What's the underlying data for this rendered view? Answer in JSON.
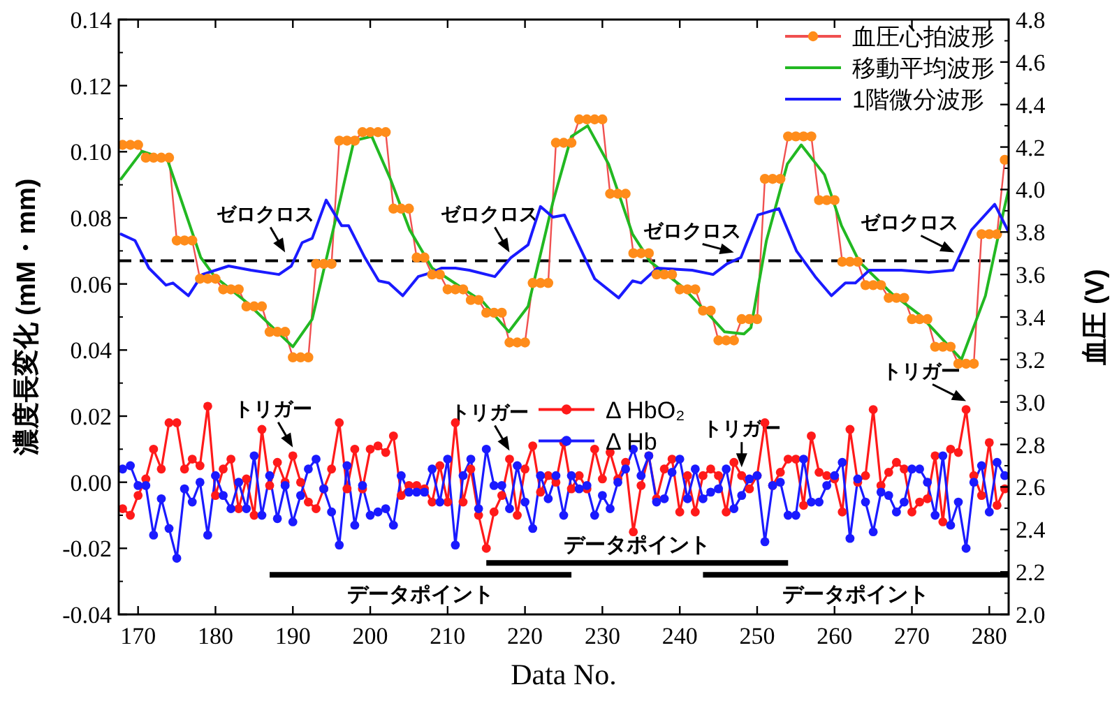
{
  "chart_data": {
    "type": "line",
    "xlabel": "Data No.",
    "ylabel": "濃度長変化 (mM・mm)",
    "y2label": "血圧 (V)",
    "xlim": [
      167.5,
      282.5
    ],
    "xticks": [
      170,
      180,
      190,
      200,
      210,
      220,
      230,
      240,
      250,
      260,
      270,
      280
    ],
    "ylim": [
      -0.04,
      0.14
    ],
    "yticks": [
      {
        "value": -0.04,
        "label": "-0.04"
      },
      {
        "value": -0.02,
        "label": "-0.02"
      },
      {
        "value": 0,
        "label": "0.00"
      },
      {
        "value": 0.02,
        "label": "0.02"
      },
      {
        "value": 0.04,
        "label": "0.04"
      },
      {
        "value": 0.06,
        "label": "0.06"
      },
      {
        "value": 0.08,
        "label": "0.08"
      },
      {
        "value": 0.1,
        "label": "0.10"
      },
      {
        "value": 0.12,
        "label": "0.12"
      },
      {
        "value": 0.14,
        "label": "0.14"
      }
    ],
    "y2lim": [
      2.0,
      4.8
    ],
    "y2ticks": [
      {
        "value": 2.0,
        "label": "2.0"
      },
      {
        "value": 2.2,
        "label": "2.2"
      },
      {
        "value": 2.4,
        "label": "2.4"
      },
      {
        "value": 2.6,
        "label": "2.6"
      },
      {
        "value": 2.8,
        "label": "2.8"
      },
      {
        "value": 3.0,
        "label": "3.0"
      },
      {
        "value": 3.2,
        "label": "3.2"
      },
      {
        "value": 3.4,
        "label": "3.4"
      },
      {
        "value": 3.6,
        "label": "3.6"
      },
      {
        "value": 3.8,
        "label": "3.8"
      },
      {
        "value": 4.0,
        "label": "4.0"
      },
      {
        "value": 4.2,
        "label": "4.2"
      },
      {
        "value": 4.4,
        "label": "4.4"
      },
      {
        "value": 4.6,
        "label": "4.6"
      },
      {
        "value": 4.8,
        "label": "4.8"
      }
    ],
    "grid": false,
    "legend": "top right",
    "x": [
      168,
      169,
      170,
      171,
      172,
      173,
      174,
      175,
      176,
      177,
      178,
      179,
      180,
      181,
      182,
      183,
      184,
      185,
      186,
      187,
      188,
      189,
      190,
      191,
      192,
      193,
      194,
      195,
      196,
      197,
      198,
      199,
      200,
      201,
      202,
      203,
      204,
      205,
      206,
      207,
      208,
      209,
      210,
      211,
      212,
      213,
      214,
      215,
      216,
      217,
      218,
      219,
      220,
      221,
      222,
      223,
      224,
      225,
      226,
      227,
      228,
      229,
      230,
      231,
      232,
      233,
      234,
      235,
      236,
      237,
      238,
      239,
      240,
      241,
      242,
      243,
      244,
      245,
      246,
      247,
      248,
      249,
      250,
      251,
      252,
      253,
      254,
      255,
      256,
      257,
      258,
      259,
      260,
      261,
      262,
      263,
      264,
      265,
      266,
      267,
      268,
      269,
      270,
      271,
      272,
      273,
      274,
      275,
      276,
      277,
      278,
      279,
      280,
      281,
      282
    ],
    "series": [
      {
        "name": "データポイント",
        "axis": "y",
        "color": "#000000",
        "marker": "none",
        "x": [
          187,
          226
        ],
        "values": [
          -0.028,
          -0.028
        ]
      },
      {
        "name": "データポイント",
        "axis": "y",
        "color": "#000000",
        "marker": "none",
        "x": [
          215,
          254
        ],
        "values": [
          -0.0244,
          -0.0244
        ]
      },
      {
        "name": "データポイント",
        "axis": "y",
        "color": "#000000",
        "marker": "none",
        "x": [
          243,
          282.5
        ],
        "values": [
          -0.028,
          -0.028
        ]
      },
      {
        "name": "血圧心拍波形",
        "axis": "y2",
        "color": "#ff8c1a",
        "marker": "circle",
        "values": [
          4.21,
          4.21,
          4.21,
          4.15,
          4.15,
          4.15,
          4.15,
          3.76,
          3.76,
          3.76,
          3.58,
          3.58,
          3.58,
          3.53,
          3.53,
          3.53,
          3.45,
          3.45,
          3.45,
          3.33,
          3.33,
          3.33,
          3.21,
          3.21,
          3.21,
          3.65,
          3.65,
          3.65,
          4.23,
          4.23,
          4.23,
          4.27,
          4.27,
          4.27,
          4.27,
          3.91,
          3.91,
          3.91,
          3.68,
          3.68,
          3.6,
          3.6,
          3.53,
          3.53,
          3.53,
          3.48,
          3.48,
          3.42,
          3.42,
          3.42,
          3.28,
          3.28,
          3.28,
          3.56,
          3.56,
          3.56,
          4.22,
          4.22,
          4.22,
          4.33,
          4.33,
          4.33,
          4.33,
          3.98,
          3.98,
          3.98,
          3.7,
          3.7,
          3.7,
          3.6,
          3.6,
          3.6,
          3.53,
          3.53,
          3.53,
          3.43,
          3.43,
          3.29,
          3.29,
          3.29,
          3.39,
          3.39,
          3.39,
          4.05,
          4.05,
          4.05,
          4.25,
          4.25,
          4.25,
          4.25,
          3.95,
          3.95,
          3.95,
          3.66,
          3.66,
          3.66,
          3.55,
          3.55,
          3.55,
          3.49,
          3.49,
          3.49,
          3.39,
          3.39,
          3.39,
          3.26,
          3.26,
          3.26,
          3.18,
          3.18,
          3.18,
          3.79,
          3.79,
          3.79,
          4.14
        ]
      },
      {
        "name": "移動平均波形",
        "axis": "y2",
        "color": "#22b822",
        "marker": "none",
        "x": [
          167.8,
          170.5,
          173.8,
          178.1,
          179.9,
          184,
          190,
          192.5,
          195.4,
          197.9,
          200.2,
          202.6,
          205.1,
          208,
          214.6,
          217.9,
          220.4,
          223.6,
          226,
          228.1,
          230.8,
          233.9,
          236.2,
          240.4,
          244.3,
          245.8,
          248.3,
          249.2,
          251.2,
          253.9,
          255.7,
          258.7,
          260.9,
          263.2,
          267.4,
          271,
          276.4,
          279.5,
          281.8,
          282.5
        ],
        "values": [
          4.05,
          4.18,
          4.14,
          3.68,
          3.59,
          3.47,
          3.26,
          3.39,
          3.84,
          4.23,
          4.25,
          4.05,
          3.81,
          3.63,
          3.47,
          3.33,
          3.45,
          3.94,
          4.25,
          4.3,
          4.12,
          3.79,
          3.66,
          3.54,
          3.39,
          3.33,
          3.32,
          3.35,
          3.76,
          4.12,
          4.21,
          4.07,
          3.83,
          3.66,
          3.51,
          3.41,
          3.2,
          3.5,
          3.89,
          4.0
        ]
      },
      {
        "name": "1階微分波形",
        "axis": "y2",
        "color": "#1a1aff",
        "marker": "none",
        "x": [
          167.8,
          169.6,
          171.4,
          173.6,
          174.5,
          176.5,
          178.3,
          181.7,
          184.6,
          188.2,
          189.8,
          191.2,
          192.5,
          194.3,
          196.3,
          197.2,
          199.3,
          201.1,
          202.4,
          204.2,
          206.2,
          208,
          209.2,
          211,
          212.8,
          216.1,
          218.2,
          220.4,
          222,
          223.6,
          225.1,
          229,
          232.1,
          233.9,
          235,
          237.1,
          241.6,
          244.3,
          246.1,
          247.9,
          250.1,
          252.8,
          255.1,
          257.5,
          259.6,
          261.4,
          262.7,
          264.5,
          268.6,
          272.2,
          275.3,
          277.7,
          280.7,
          282.5
        ],
        "values": [
          3.79,
          3.76,
          3.63,
          3.55,
          3.56,
          3.5,
          3.6,
          3.64,
          3.62,
          3.6,
          3.64,
          3.75,
          3.77,
          3.95,
          3.83,
          3.83,
          3.68,
          3.57,
          3.56,
          3.5,
          3.59,
          3.61,
          3.63,
          3.63,
          3.62,
          3.59,
          3.68,
          3.74,
          3.92,
          3.87,
          3.88,
          3.58,
          3.49,
          3.57,
          3.56,
          3.63,
          3.62,
          3.6,
          3.65,
          3.68,
          3.88,
          3.91,
          3.71,
          3.59,
          3.5,
          3.56,
          3.56,
          3.62,
          3.62,
          3.61,
          3.62,
          3.81,
          3.93,
          3.8
        ]
      },
      {
        "name": "Δ HbO₂",
        "axis": "y",
        "color": "#ff1a1a",
        "marker": "circle",
        "values": [
          -0.008,
          -0.01,
          -0.004,
          0.001,
          0.01,
          0.004,
          0.018,
          0.018,
          0.004,
          0.007,
          0.005,
          0.023,
          -0.004,
          0.004,
          0.007,
          -0.008,
          0.001,
          -0.01,
          0.016,
          -0.001,
          0.006,
          0.0,
          0.008,
          0.0,
          -0.006,
          -0.008,
          -0.002,
          0.004,
          0.018,
          -0.002,
          0.01,
          -0.002,
          0.01,
          0.011,
          0.009,
          0.014,
          -0.004,
          -0.001,
          -0.001,
          -0.002,
          -0.006,
          0.005,
          -0.006,
          0.018,
          -0.006,
          0.004,
          -0.01,
          -0.02,
          -0.009,
          -0.004,
          0.007,
          -0.01,
          0.004,
          0.011,
          -0.003,
          0.002,
          0.0,
          0.012,
          -0.002,
          0.002,
          -0.002,
          0.01,
          0.001,
          0.009,
          0.001,
          0.006,
          -0.015,
          -0.001,
          0.008,
          -0.005,
          0.004,
          0.007,
          -0.009,
          0.002,
          -0.009,
          0.002,
          0.004,
          0.002,
          -0.009,
          0.006,
          0.002,
          -0.002,
          0.002,
          0.018,
          -0.001,
          0.003,
          0.007,
          0.007,
          -0.007,
          0.014,
          0.003,
          0.002,
          0.001,
          -0.009,
          0.016,
          0.0,
          0.002,
          0.022,
          -0.001,
          0.003,
          0.006,
          0.004,
          -0.009,
          -0.006,
          -0.005,
          0.008,
          -0.012,
          0.01,
          0.009,
          0.022,
          0.002,
          -0.004,
          0.012,
          -0.007,
          -0.002
        ]
      },
      {
        "name": "Δ Hb",
        "axis": "y",
        "color": "#1a1aff",
        "marker": "circle",
        "values": [
          0.004,
          0.005,
          -0.001,
          -0.001,
          -0.016,
          -0.005,
          -0.014,
          -0.023,
          -0.002,
          -0.006,
          0.0,
          -0.016,
          0.002,
          -0.004,
          -0.008,
          0.0,
          -0.008,
          0.008,
          -0.01,
          0.002,
          -0.011,
          -0.001,
          -0.012,
          -0.004,
          0.004,
          0.007,
          -0.002,
          -0.009,
          -0.019,
          0.005,
          -0.013,
          -0.001,
          -0.01,
          -0.009,
          -0.008,
          -0.013,
          0.002,
          -0.003,
          -0.003,
          -0.003,
          0.004,
          -0.006,
          0.007,
          -0.019,
          0.002,
          0.007,
          -0.008,
          0.01,
          -0.001,
          -0.001,
          -0.008,
          0.005,
          -0.006,
          -0.014,
          0.002,
          -0.005,
          0.002,
          -0.01,
          0.002,
          -0.002,
          -0.001,
          -0.01,
          -0.004,
          -0.008,
          0.0,
          0.004,
          0.01,
          0.002,
          0.008,
          -0.006,
          -0.005,
          0.003,
          0.007,
          -0.005,
          0.004,
          -0.005,
          -0.003,
          -0.002,
          0.004,
          -0.008,
          -0.004,
          0.001,
          0.002,
          -0.018,
          -0.001,
          0.0,
          -0.01,
          -0.01,
          0.007,
          -0.006,
          -0.006,
          -0.001,
          0.002,
          0.006,
          -0.017,
          0.001,
          -0.006,
          -0.015,
          -0.003,
          -0.004,
          -0.009,
          -0.006,
          0.004,
          0.004,
          0.0,
          -0.01,
          0.008,
          -0.013,
          -0.006,
          -0.02,
          0.0,
          0.005,
          -0.009,
          0.006,
          0.002
        ]
      }
    ],
    "ref_lines": [
      {
        "axis": "y",
        "value": 0.067,
        "color": "#000000",
        "line_style": "dashed"
      }
    ],
    "annotations": [
      {
        "text": "ゼロクロス",
        "x": 189,
        "y": 0.067
      },
      {
        "text": "ゼロクロス",
        "x": 218,
        "y": 0.067
      },
      {
        "text": "ゼロクロス",
        "x": 247,
        "y": 0.067
      },
      {
        "text": "ゼロクロス",
        "x": 275.5,
        "y": 0.067
      },
      {
        "text": "トリガー",
        "x": 190,
        "y": 0.008
      },
      {
        "text": "トリガー",
        "x": 218,
        "y": 0.007
      },
      {
        "text": "トリガー",
        "x": 248,
        "y": 0.002
      },
      {
        "text": "トリガー",
        "x": 277,
        "y": 0.022
      }
    ]
  }
}
